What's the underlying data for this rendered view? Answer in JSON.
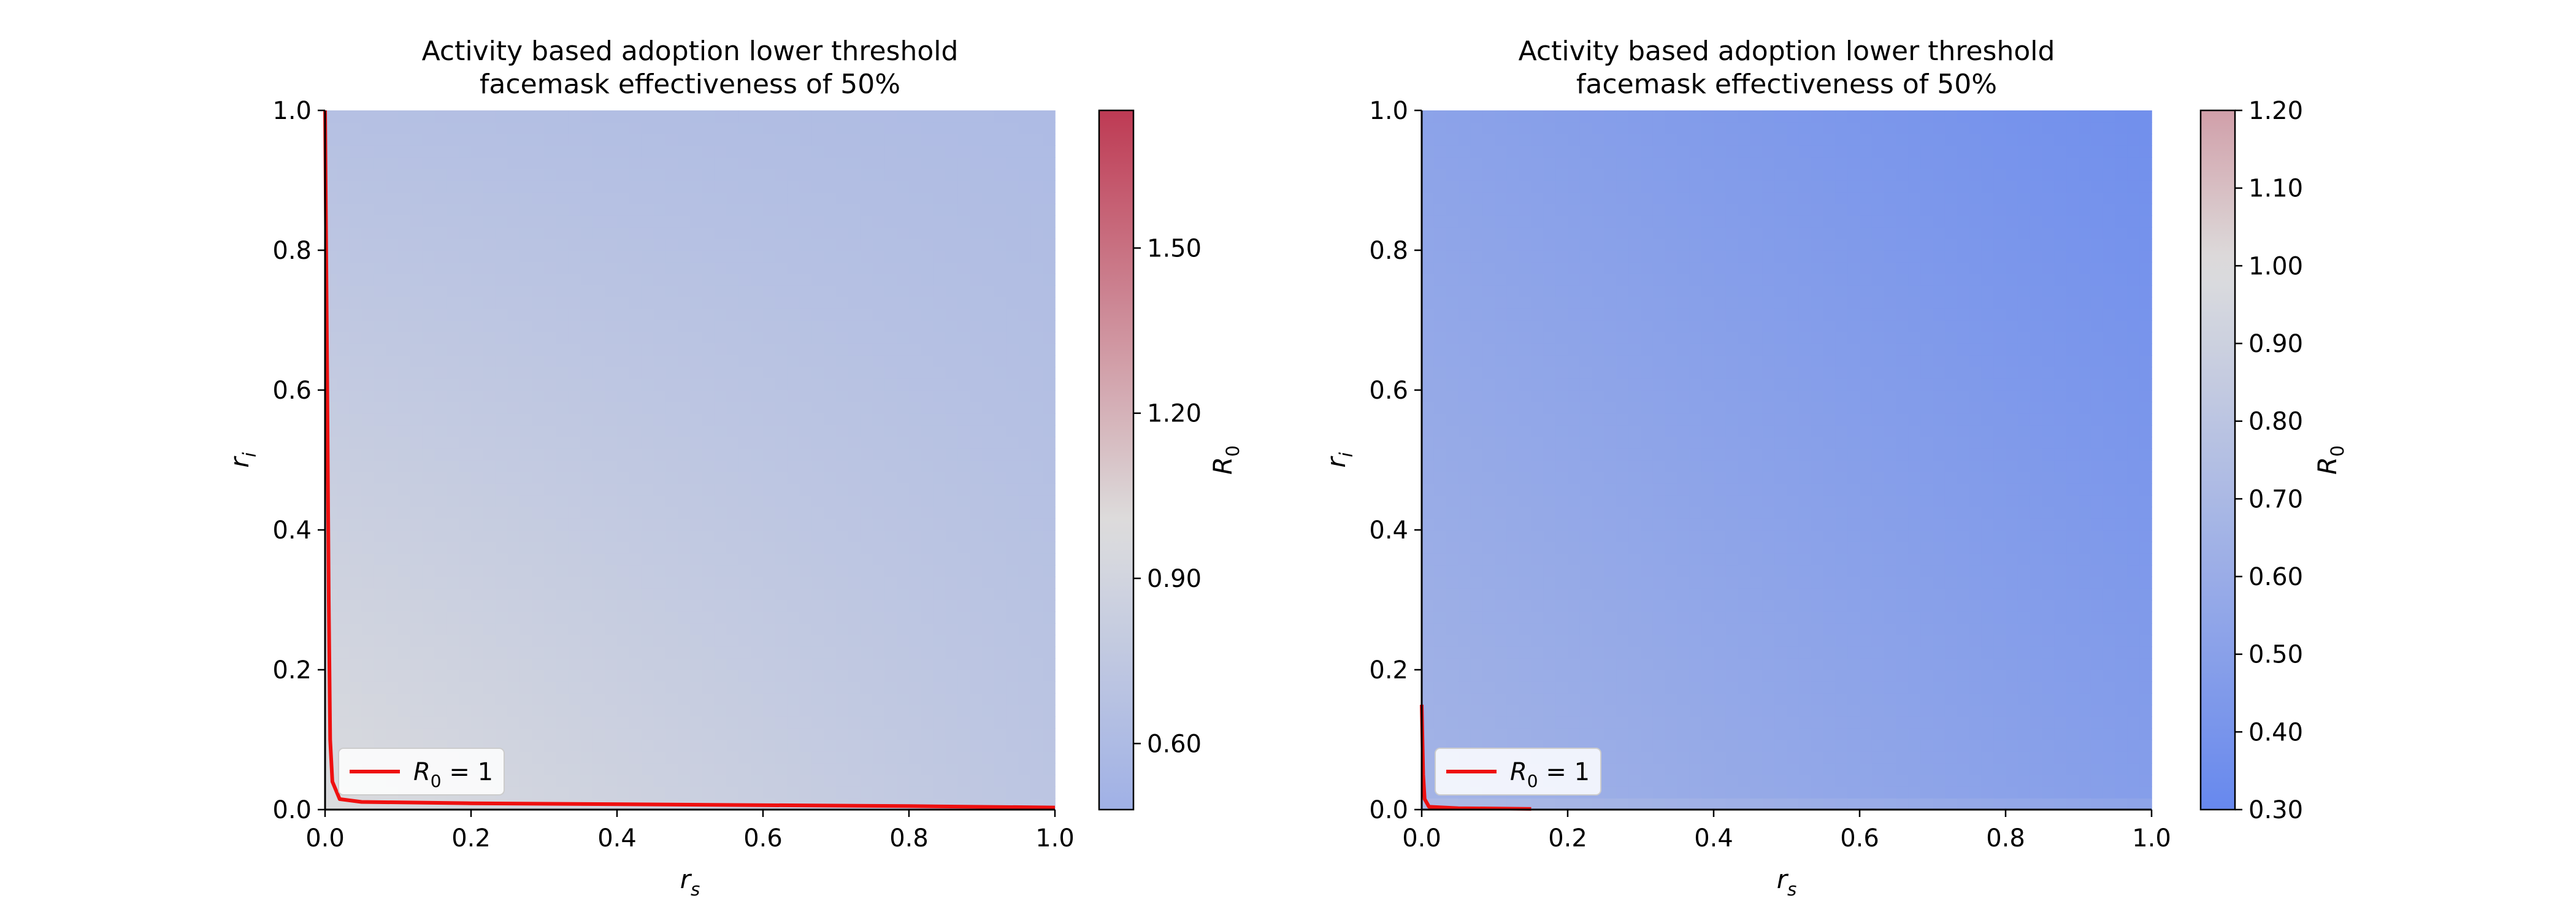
{
  "chart_data": [
    {
      "type": "heatmap",
      "title_line1": "Activity based adoption lower threshold",
      "title_line2": "facemask effectiveness of 50%",
      "xlabel": "r",
      "xlabel_sub": "s",
      "ylabel": "r",
      "ylabel_sub": "i",
      "xlim": [
        0.0,
        1.0
      ],
      "ylim": [
        0.0,
        1.0
      ],
      "xticks": [
        "0.0",
        "0.2",
        "0.4",
        "0.6",
        "0.8",
        "1.0"
      ],
      "yticks": [
        "0.0",
        "0.2",
        "0.4",
        "0.6",
        "0.8",
        "1.0"
      ],
      "colorbar": {
        "label": "R",
        "label_sub": "0",
        "range": [
          0.48,
          1.75
        ],
        "ticks": [
          {
            "value": 0.6,
            "label": "0.60"
          },
          {
            "value": 0.9,
            "label": "0.90"
          },
          {
            "value": 1.2,
            "label": "1.20"
          },
          {
            "value": 1.5,
            "label": "1.50"
          }
        ],
        "color_low": "#6788ee",
        "color_mid": "#dddddd",
        "color_high": "#b40426",
        "center": 1.0,
        "half_span": 1.0
      },
      "field": {
        "origin_value": 0.98,
        "corner_x_value": 0.72,
        "corner_y_value": 0.66,
        "far_corner_value": 0.6,
        "dip_at_y0": false
      },
      "contour_label": "R",
      "contour_label_sub": "0",
      "contour_label_suffix": " = 1",
      "contour_color": "#ee1010",
      "contour": [
        [
          0.0,
          1.0
        ],
        [
          0.003,
          0.6
        ],
        [
          0.005,
          0.3
        ],
        [
          0.007,
          0.1
        ],
        [
          0.01,
          0.04
        ],
        [
          0.02,
          0.015
        ],
        [
          0.05,
          0.011
        ],
        [
          0.2,
          0.009
        ],
        [
          0.5,
          0.007
        ],
        [
          0.8,
          0.005
        ],
        [
          1.0,
          0.003
        ]
      ],
      "legend_position": "lower-left"
    },
    {
      "type": "heatmap",
      "title_line1": "Activity based adoption lower threshold",
      "title_line2": "facemask effectiveness of 50%",
      "xlabel": "r",
      "xlabel_sub": "s",
      "ylabel": "r",
      "ylabel_sub": "i",
      "xlim": [
        0.0,
        1.0
      ],
      "ylim": [
        0.0,
        1.0
      ],
      "xticks": [
        "0.0",
        "0.2",
        "0.4",
        "0.6",
        "0.8",
        "1.0"
      ],
      "yticks": [
        "0.0",
        "0.2",
        "0.4",
        "0.6",
        "0.8",
        "1.0"
      ],
      "colorbar": {
        "label": "R",
        "label_sub": "0",
        "range": [
          0.3,
          1.2
        ],
        "ticks": [
          {
            "value": 0.3,
            "label": "0.30"
          },
          {
            "value": 0.4,
            "label": "0.40"
          },
          {
            "value": 0.5,
            "label": "0.50"
          },
          {
            "value": 0.6,
            "label": "0.60"
          },
          {
            "value": 0.7,
            "label": "0.70"
          },
          {
            "value": 0.8,
            "label": "0.80"
          },
          {
            "value": 0.9,
            "label": "0.90"
          },
          {
            "value": 1.0,
            "label": "1.00"
          },
          {
            "value": 1.1,
            "label": "1.10"
          },
          {
            "value": 1.2,
            "label": "1.20"
          }
        ],
        "color_low": "#6788ee",
        "color_mid": "#dddddd",
        "color_high": "#b40426",
        "center": 1.0,
        "half_span": 0.7
      },
      "field": {
        "origin_value": 0.66,
        "corner_x_value": 0.48,
        "corner_y_value": 0.52,
        "far_corner_value": 0.36,
        "dip_at_y0": true
      },
      "contour_label": "R",
      "contour_label_sub": "0",
      "contour_label_suffix": " = 1",
      "contour_color": "#ee1010",
      "contour": [
        [
          0.0,
          0.15
        ],
        [
          0.002,
          0.05
        ],
        [
          0.004,
          0.015
        ],
        [
          0.01,
          0.004
        ],
        [
          0.05,
          0.002
        ],
        [
          0.15,
          0.001
        ]
      ],
      "legend_position": "lower-left"
    }
  ]
}
